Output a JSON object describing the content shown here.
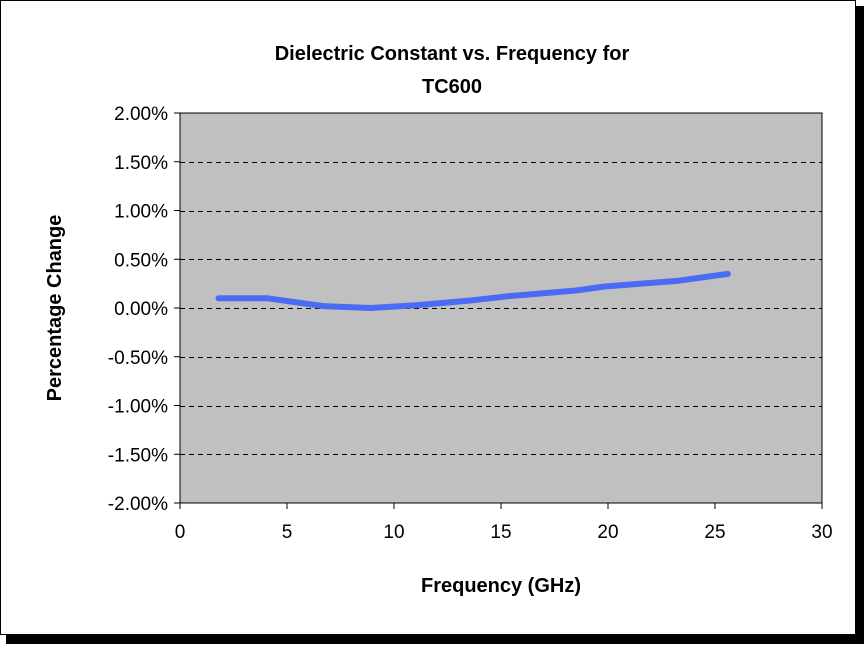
{
  "chart_data": {
    "type": "line",
    "title_lines": [
      "Dielectric Constant vs. Frequency  for",
      "TC600"
    ],
    "xlabel": "Frequency (GHz)",
    "ylabel": "Percentage Change",
    "xlim": [
      0,
      30
    ],
    "ylim": [
      -2.0,
      2.0
    ],
    "x_ticks": [
      0,
      5,
      10,
      15,
      20,
      25,
      30
    ],
    "x_tick_labels": [
      "0",
      "5",
      "10",
      "15",
      "20",
      "25",
      "30"
    ],
    "y_ticks": [
      2.0,
      1.5,
      1.0,
      0.5,
      0.0,
      -0.5,
      -1.0,
      -1.5,
      -2.0
    ],
    "y_tick_labels": [
      "2.00%",
      "1.50%",
      "1.00%",
      "0.50%",
      "0.00%",
      "-0.50%",
      "-1.00%",
      "-1.50%",
      "-2.00%"
    ],
    "grid": "horizontal dashed",
    "legend": "none",
    "series": [
      {
        "x": [
          1.8,
          4.1,
          6.7,
          8.9,
          11.1,
          13.7,
          15.3,
          18.5,
          19.8,
          23.3,
          25.6
        ],
        "y": [
          0.1,
          0.1,
          0.02,
          0.0,
          0.03,
          0.08,
          0.12,
          0.18,
          0.22,
          0.28,
          0.35
        ]
      }
    ],
    "colors": {
      "plot_background": "#c0c0c0",
      "series_line": "#4a6cf4",
      "grid_line": "#000000",
      "frame_border": "#000000"
    }
  }
}
